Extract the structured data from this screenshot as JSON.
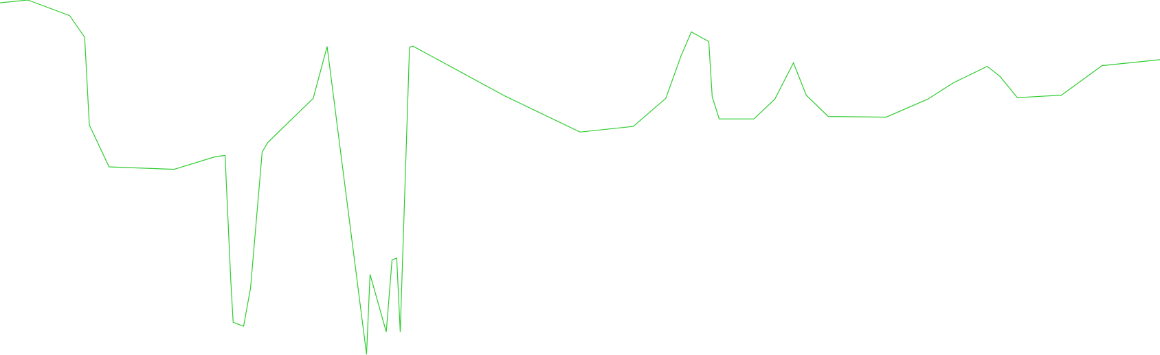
{
  "chart_data": {
    "type": "line",
    "x": [
      0,
      2.4,
      6.0,
      7.3,
      7.7,
      9.4,
      15.0,
      18.6,
      19.4,
      19.9,
      20.1,
      21.0,
      21.6,
      22.6,
      23.1,
      27.0,
      28.2,
      31.6,
      31.9,
      33.3,
      33.8,
      34.2,
      34.5,
      35.3,
      35.6,
      43.5,
      50.0,
      54.6,
      57.4,
      58.7,
      59.6,
      61.1,
      61.4,
      62.0,
      65.0,
      66.8,
      68.4,
      69.5,
      71.4,
      76.4,
      80.0,
      82.2,
      85.1,
      86.2,
      87.7,
      91.5,
      95.0,
      100.0
    ],
    "y": [
      99.2,
      100.0,
      95.6,
      89.5,
      64.8,
      53.0,
      52.3,
      55.9,
      56.2,
      20.7,
      9.2,
      8.1,
      18.9,
      57.2,
      59.9,
      72.3,
      86.9,
      0.2,
      22.7,
      6.5,
      26.8,
      27.3,
      6.5,
      86.7,
      87.0,
      73.0,
      62.8,
      64.4,
      72.3,
      84.2,
      91.0,
      88.3,
      72.7,
      66.5,
      66.5,
      72.1,
      82.3,
      73.2,
      67.2,
      67.0,
      72.1,
      76.7,
      81.3,
      78.5,
      72.5,
      73.2,
      81.5,
      83.2
    ],
    "xlim": [
      0,
      100
    ],
    "ylim": [
      0,
      100
    ],
    "title": "",
    "xlabel": "",
    "ylabel": "",
    "grid": false,
    "axes_visible": false,
    "legend": "none",
    "series": [
      {
        "color": "#2ecc2e"
      }
    ]
  }
}
